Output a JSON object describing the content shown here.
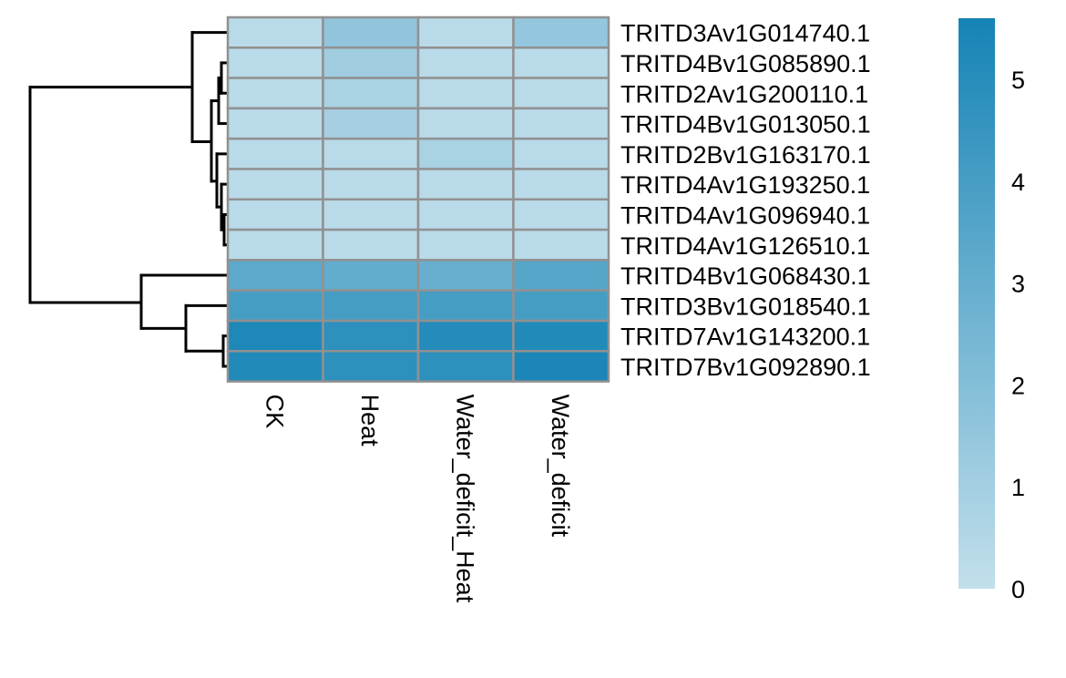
{
  "chart_data": {
    "type": "heatmap",
    "columns": [
      "CK",
      "Heat",
      "Water_deficit_Heat",
      "Water_deficit"
    ],
    "rows": [
      "TRITD3Av1G014740.1",
      "TRITD4Bv1G085890.1",
      "TRITD2Av1G200110.1",
      "TRITD4Bv1G013050.1",
      "TRITD2Bv1G163170.1",
      "TRITD4Av1G193250.1",
      "TRITD4Av1G096940.1",
      "TRITD4Av1G126510.1",
      "TRITD4Bv1G068430.1",
      "TRITD3Bv1G018540.1",
      "TRITD7Av1G143200.1",
      "TRITD7Bv1G092890.1"
    ],
    "values": [
      [
        0.3,
        1.6,
        0.3,
        1.5
      ],
      [
        0.3,
        1.1,
        0.3,
        0.3
      ],
      [
        0.3,
        0.8,
        0.3,
        0.3
      ],
      [
        0.3,
        0.9,
        0.3,
        0.3
      ],
      [
        0.3,
        0.3,
        0.8,
        0.3
      ],
      [
        0.3,
        0.3,
        0.3,
        0.3
      ],
      [
        0.3,
        0.3,
        0.3,
        0.3
      ],
      [
        0.3,
        0.3,
        0.3,
        0.3
      ],
      [
        3.3,
        3.1,
        2.9,
        3.5
      ],
      [
        4.0,
        4.0,
        4.0,
        4.0
      ],
      [
        5.3,
        4.8,
        5.1,
        5.2
      ],
      [
        5.2,
        4.8,
        4.8,
        5.4
      ]
    ],
    "legend": {
      "min": 0,
      "max": 5.6,
      "ticks": [
        "0",
        "1",
        "2",
        "3",
        "4",
        "5"
      ],
      "tick_values": [
        0,
        1,
        2,
        3,
        4,
        5
      ],
      "color_low": "#c2dfeb",
      "color_high": "#1583b5"
    },
    "row_dendrogram": true,
    "cell_border_color": "#919191",
    "title": ""
  }
}
